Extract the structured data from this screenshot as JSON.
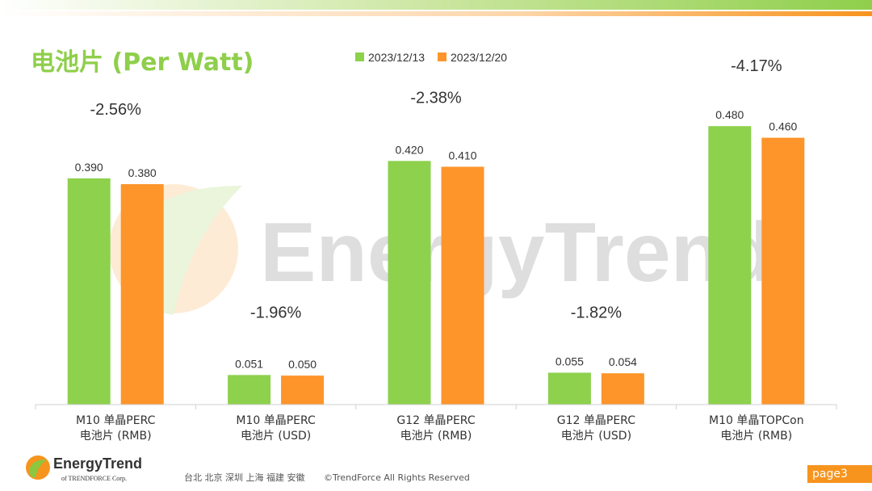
{
  "title": "电池片 (Per Watt)",
  "colors": {
    "green": "#8dd14d",
    "orange": "#fd952b",
    "title": "#8fcf4b",
    "badge": "#f7941e"
  },
  "watermark_text": "EnergyTrend",
  "chart_data": {
    "type": "bar",
    "legend_position": "top",
    "ylim": [
      0,
      0.6
    ],
    "grid": false,
    "categories": [
      [
        "M10 单晶PERC",
        "电池片 (RMB)"
      ],
      [
        "M10 单晶PERC",
        "电池片 (USD)"
      ],
      [
        "G12 单晶PERC",
        "电池片 (RMB)"
      ],
      [
        "G12 单晶PERC",
        "电池片 (USD)"
      ],
      [
        "M10 单晶TOPCon",
        "电池片 (RMB)"
      ]
    ],
    "series": [
      {
        "name": "2023/12/13",
        "values": [
          0.39,
          0.051,
          0.42,
          0.055,
          0.48
        ],
        "labels": [
          "0.390",
          "0.051",
          "0.420",
          "0.055",
          "0.480"
        ]
      },
      {
        "name": "2023/12/20",
        "values": [
          0.38,
          0.05,
          0.41,
          0.054,
          0.46
        ],
        "labels": [
          "0.380",
          "0.050",
          "0.410",
          "0.054",
          "0.460"
        ]
      }
    ],
    "annotations": [
      "-2.56%",
      "-1.96%",
      "-2.38%",
      "-1.82%",
      "-4.17%"
    ],
    "annotation_values": [
      0.5,
      0.15,
      0.52,
      0.15,
      0.575
    ]
  },
  "footer": {
    "cities": "台北  北京  深圳  上海  福建  安徽",
    "copyright": "©TrendForce All Rights Reserved",
    "brand_name": "EnergyTrend",
    "brand_sub": "of TRENDFORCE Corp.",
    "page": "page3"
  }
}
